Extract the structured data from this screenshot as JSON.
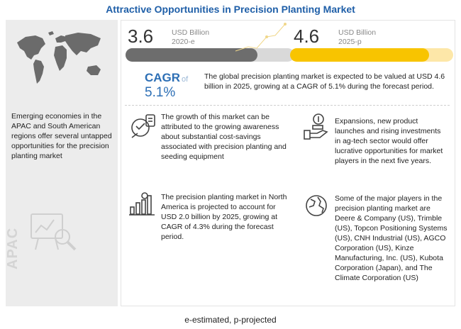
{
  "title": "Attractive Opportunities in Precision Planting Market",
  "left_panel": {
    "text": "Emerging economies in the APAC and South American regions offer several untapped opportunities for the precision planting market",
    "region_label": "APAC"
  },
  "market_2020": {
    "value": "3.6",
    "unit": "USD Billion",
    "year": "2020-e",
    "bar_fraction": 0.78
  },
  "market_2025": {
    "value": "4.6",
    "unit": "USD Billion",
    "year": "2025-p",
    "bar_fraction": 0.85
  },
  "cagr": {
    "label": "CAGR",
    "of": "of",
    "value": "5.1%",
    "text": "The global precision planting market is expected to be valued at USD 4.6 billion in 2025, growing at a CAGR of 5.1% during the forecast period."
  },
  "blocks": [
    {
      "text": "The growth of this market can be attributed to the growing awareness about substantial cost-savings associated with precision planting and seeding equipment"
    },
    {
      "text": "Expansions, new product launches and rising investments in ag-tech sector would offer lucrative opportunities for market players in the next five years."
    },
    {
      "text": "The precision planting market in North America is projected to account for USD 2.0 billion by 2025, growing at CAGR of 4.3% during the forecast period."
    },
    {
      "text": "Some of the major players in the precision planting market are Deere & Company (US), Trimble (US), Topcon Positioning Systems (US), CNH Industrial (US), AGCO Corporation (US), Kinze Manufacturing, Inc. (US), Kubota Corporation (Japan), and The Climate Corporation (US)"
    }
  ],
  "footnote": "e-estimated, p-projected",
  "colors": {
    "title": "#1f5fa8",
    "accent_blue": "#2d6fb5",
    "bar_grey": "#6d6d6d",
    "bar_yellow": "#f8c400",
    "panel_bg": "#ececec"
  },
  "icons": [
    "world-map-icon",
    "analytics-magnifier-icon",
    "savings-piggy-icon",
    "hand-money-icon",
    "bar-chart-growth-icon",
    "globe-icon"
  ]
}
